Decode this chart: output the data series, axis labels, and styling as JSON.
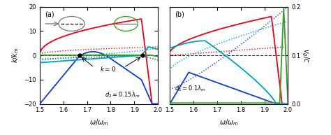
{
  "omega_range": [
    1.5,
    2.0
  ],
  "ylim_a": [
    -20,
    20
  ],
  "ylim_b": [
    0,
    0.2
  ],
  "yticks_a": [
    -20,
    -10,
    0,
    10,
    20
  ],
  "yticks_b": [
    0,
    0.1,
    0.2
  ],
  "xticks": [
    1.5,
    1.6,
    1.7,
    1.8,
    1.9,
    2.0
  ],
  "xlabel": "$\\omega/\\omega_m$",
  "ylabel_a": "$k/k_m$",
  "ylabel_b": "$v_g/c$",
  "label_a": "(a)",
  "label_b": "(b)",
  "annotation_a": "$d_2=0.15\\lambda_m$",
  "annotation_b": "$d_1=0.1\\lambda_m$",
  "red_color": "#e8001a",
  "blue_color": "#1040c0",
  "cyan_color": "#00a0b8",
  "green_color": "#30a020",
  "dark_gray": "#555555",
  "figsize": [
    4.74,
    1.93
  ],
  "dpi": 100
}
